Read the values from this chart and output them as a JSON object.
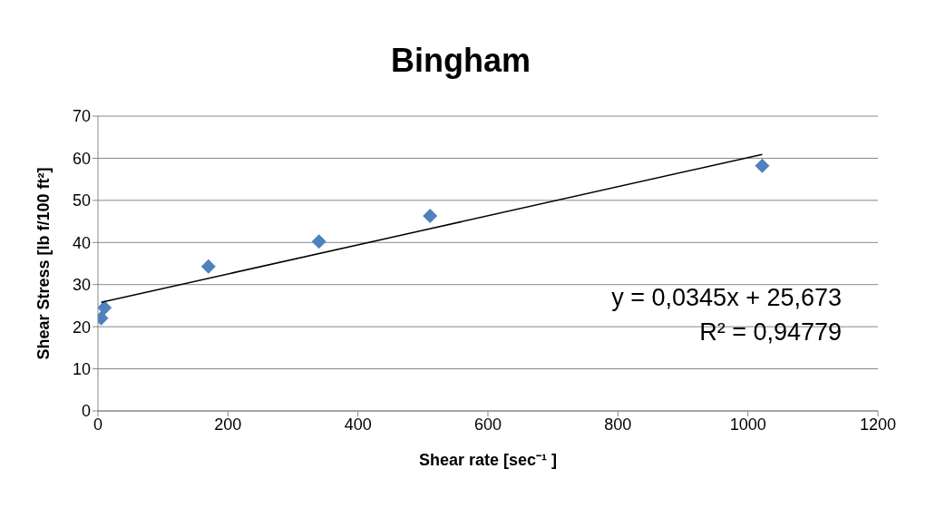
{
  "chart_data": {
    "type": "scatter",
    "title": "Bingham",
    "xlabel": "Shear rate [sec⁻¹ ]",
    "ylabel": "Shear Stress [lb f/100 ft²]",
    "xlim": [
      0,
      1200
    ],
    "xticks": [
      0,
      200,
      400,
      600,
      800,
      1000,
      1200
    ],
    "ylim": [
      0,
      70
    ],
    "yticks": [
      0,
      10,
      20,
      30,
      40,
      50,
      60,
      70
    ],
    "grid": "y",
    "series": [
      {
        "marker": "diamond",
        "color": "#4f81bd",
        "x": [
          5,
          10,
          170,
          340,
          511,
          1022
        ],
        "values": [
          22,
          24.5,
          34.3,
          40.2,
          46.3,
          58.2
        ]
      },
      {
        "type": "line",
        "marker": "none",
        "color": "#000000",
        "x": [
          5,
          1022
        ],
        "values": [
          25.8,
          60.9
        ]
      }
    ],
    "annotations": [
      "y = 0,0345x + 25,673",
      "R² = 0,94779"
    ]
  }
}
